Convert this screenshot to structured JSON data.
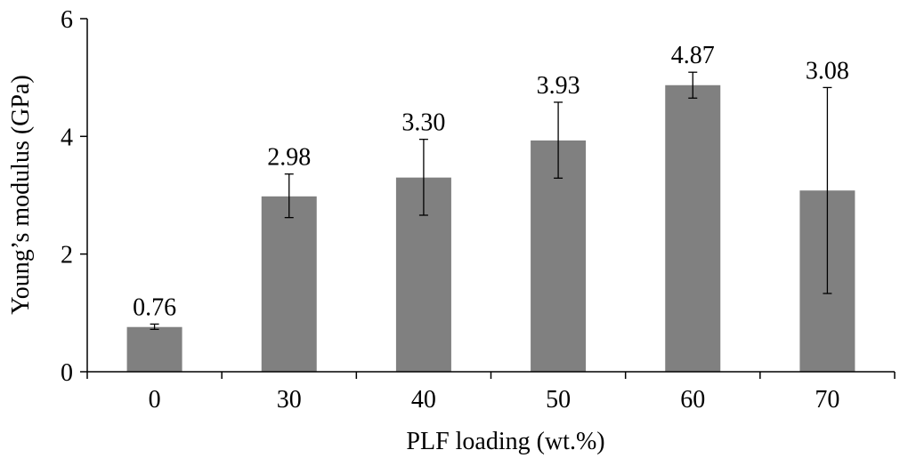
{
  "chart_data": {
    "type": "bar",
    "title": "",
    "xlabel": "PLF loading (wt.%)",
    "ylabel": "Young’s modulus (GPa)",
    "categories": [
      "0",
      "30",
      "40",
      "50",
      "60",
      "70"
    ],
    "values": [
      0.76,
      2.98,
      3.3,
      3.93,
      4.87,
      3.08
    ],
    "value_labels": [
      "0.76",
      "2.98",
      "3.30",
      "3.93",
      "4.87",
      "3.08"
    ],
    "error_low": [
      0.72,
      2.62,
      2.66,
      3.29,
      4.65,
      1.33
    ],
    "error_high": [
      0.81,
      3.36,
      3.95,
      4.58,
      5.09,
      4.83
    ],
    "ylim": [
      0,
      6
    ],
    "yticks": [
      0,
      2,
      4,
      6
    ],
    "ytick_labels": [
      "0",
      "2",
      "4",
      "6"
    ],
    "grid": false,
    "legend": "none",
    "colors": {
      "bar": "#808080",
      "axis": "#000000",
      "error_bar": "#000000"
    }
  }
}
